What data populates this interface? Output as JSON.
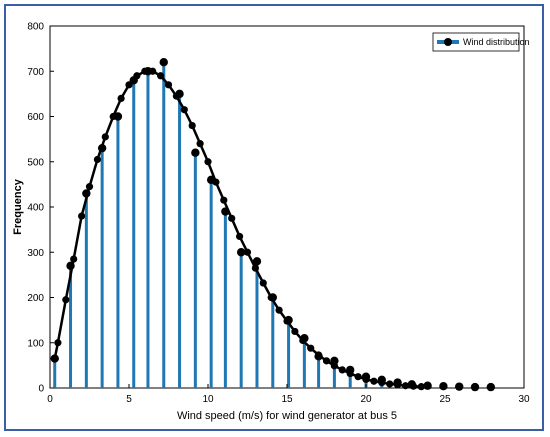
{
  "chart_data": {
    "type": "bar",
    "xlabel": "Wind speed (m/s) for wind generator at bus 5",
    "ylabel": "Frequency",
    "xlim": [
      0,
      30
    ],
    "ylim": [
      0,
      800
    ],
    "xticks": [
      "0",
      "5",
      "10",
      "15",
      "20",
      "25",
      "30"
    ],
    "yticks": [
      "0",
      "100",
      "200",
      "300",
      "400",
      "500",
      "600",
      "700",
      "800"
    ],
    "grid": false,
    "legend_position": "top-right",
    "series": [
      {
        "name": "Wind distribution",
        "type": "stem",
        "x": [
          0.3,
          1.3,
          2.3,
          3.3,
          4.3,
          5.3,
          6.2,
          7.2,
          8.2,
          9.2,
          10.2,
          11.1,
          12.1,
          13.1,
          14.1,
          15.1,
          16.1,
          17.0,
          18.0,
          19.0,
          20.0,
          21.0,
          22.0,
          22.9,
          23.9,
          24.9,
          25.9,
          26.9,
          27.9
        ],
        "values": [
          65,
          270,
          430,
          530,
          600,
          680,
          700,
          720,
          650,
          520,
          460,
          390,
          300,
          280,
          200,
          150,
          110,
          70,
          60,
          40,
          25,
          18,
          12,
          8,
          5,
          4,
          3,
          2,
          2
        ]
      }
    ],
    "curve": {
      "x": [
        0.3,
        0.5,
        1.0,
        1.5,
        2.0,
        2.5,
        3.0,
        3.5,
        4.0,
        4.5,
        5.0,
        5.5,
        6.0,
        6.5,
        7.0,
        7.5,
        8.0,
        8.5,
        9.0,
        9.5,
        10.0,
        10.5,
        11.0,
        11.5,
        12.0,
        12.5,
        13.0,
        13.5,
        14.0,
        14.5,
        15.0,
        15.5,
        16.0,
        16.5,
        17.0,
        17.5,
        18.0,
        18.5,
        19.0,
        19.5,
        20.0,
        20.5,
        21.0,
        21.5,
        22.0,
        22.5,
        23.0,
        23.5
      ],
      "values": [
        65,
        100,
        195,
        285,
        380,
        445,
        505,
        555,
        600,
        640,
        670,
        690,
        700,
        700,
        690,
        670,
        645,
        615,
        580,
        540,
        500,
        455,
        415,
        375,
        335,
        300,
        265,
        232,
        200,
        172,
        148,
        125,
        105,
        88,
        73,
        60,
        49,
        40,
        32,
        25,
        19,
        15,
        12,
        9,
        7,
        5,
        4,
        3
      ]
    }
  }
}
